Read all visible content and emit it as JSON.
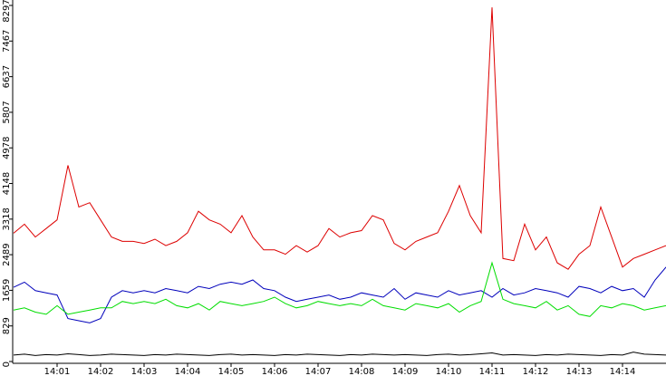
{
  "chart_data": {
    "type": "line",
    "categories": [
      null,
      null,
      null,
      null,
      "14:01",
      null,
      null,
      null,
      "14:02",
      null,
      null,
      null,
      "14:03",
      null,
      null,
      null,
      "14:04",
      null,
      null,
      null,
      "14:05",
      null,
      null,
      null,
      "14:06",
      null,
      null,
      null,
      "14:07",
      null,
      null,
      null,
      "14:08",
      null,
      null,
      null,
      "14:09",
      null,
      null,
      null,
      "14:10",
      null,
      null,
      null,
      "14:11",
      null,
      null,
      null,
      "14:12",
      null,
      null,
      null,
      "14:13",
      null,
      null,
      null,
      "14:14",
      null,
      null,
      null,
      null
    ],
    "series": [
      {
        "color": "#dd0000",
        "values": [
          2990,
          3200,
          2900,
          3100,
          3300,
          4570,
          3600,
          3700,
          3300,
          2900,
          2800,
          2800,
          2750,
          2850,
          2700,
          2800,
          3000,
          3500,
          3300,
          3200,
          3000,
          3400,
          2900,
          2600,
          2600,
          2500,
          2700,
          2550,
          2700,
          3100,
          2900,
          3000,
          3050,
          3400,
          3300,
          2750,
          2600,
          2800,
          2900,
          3000,
          3500,
          4100,
          3400,
          3000,
          8250,
          2400,
          2350,
          3200,
          2600,
          2900,
          2300,
          2150,
          2500,
          2700,
          3600,
          2900,
          2200,
          2400,
          2500,
          2600,
          2700
        ]
      },
      {
        "color": "#0000bb",
        "values": [
          1730,
          1850,
          1650,
          1600,
          1550,
          1000,
          950,
          900,
          1000,
          1500,
          1650,
          1600,
          1650,
          1600,
          1700,
          1650,
          1600,
          1750,
          1700,
          1800,
          1850,
          1800,
          1900,
          1700,
          1650,
          1500,
          1400,
          1450,
          1500,
          1550,
          1450,
          1500,
          1600,
          1550,
          1500,
          1700,
          1450,
          1600,
          1550,
          1500,
          1650,
          1550,
          1600,
          1650,
          1500,
          1700,
          1550,
          1600,
          1700,
          1650,
          1600,
          1500,
          1750,
          1700,
          1600,
          1750,
          1650,
          1700,
          1500,
          1900,
          2200
        ]
      },
      {
        "color": "#00dd00",
        "values": [
          1200,
          1250,
          1150,
          1100,
          1300,
          1100,
          1150,
          1200,
          1250,
          1250,
          1400,
          1350,
          1400,
          1350,
          1450,
          1300,
          1250,
          1350,
          1200,
          1400,
          1350,
          1300,
          1350,
          1400,
          1500,
          1350,
          1250,
          1300,
          1400,
          1350,
          1300,
          1350,
          1300,
          1450,
          1300,
          1250,
          1200,
          1350,
          1300,
          1250,
          1350,
          1150,
          1300,
          1400,
          2300,
          1450,
          1350,
          1300,
          1250,
          1400,
          1200,
          1300,
          1100,
          1050,
          1300,
          1250,
          1350,
          1300,
          1200,
          1250,
          1300
        ]
      },
      {
        "color": "#000000",
        "values": [
          150,
          170,
          140,
          160,
          150,
          180,
          160,
          140,
          150,
          170,
          160,
          150,
          140,
          160,
          150,
          170,
          160,
          150,
          140,
          160,
          170,
          150,
          160,
          150,
          140,
          160,
          150,
          170,
          160,
          150,
          140,
          160,
          150,
          170,
          160,
          150,
          160,
          150,
          140,
          160,
          170,
          150,
          160,
          180,
          200,
          150,
          160,
          150,
          140,
          160,
          150,
          170,
          160,
          150,
          140,
          160,
          150,
          220,
          170,
          160,
          150
        ]
      }
    ],
    "ylim": [
      0,
      8297
    ],
    "yticks": [
      0,
      829,
      1659,
      2489,
      3318,
      4148,
      4978,
      5807,
      6637,
      7467,
      8297
    ]
  }
}
